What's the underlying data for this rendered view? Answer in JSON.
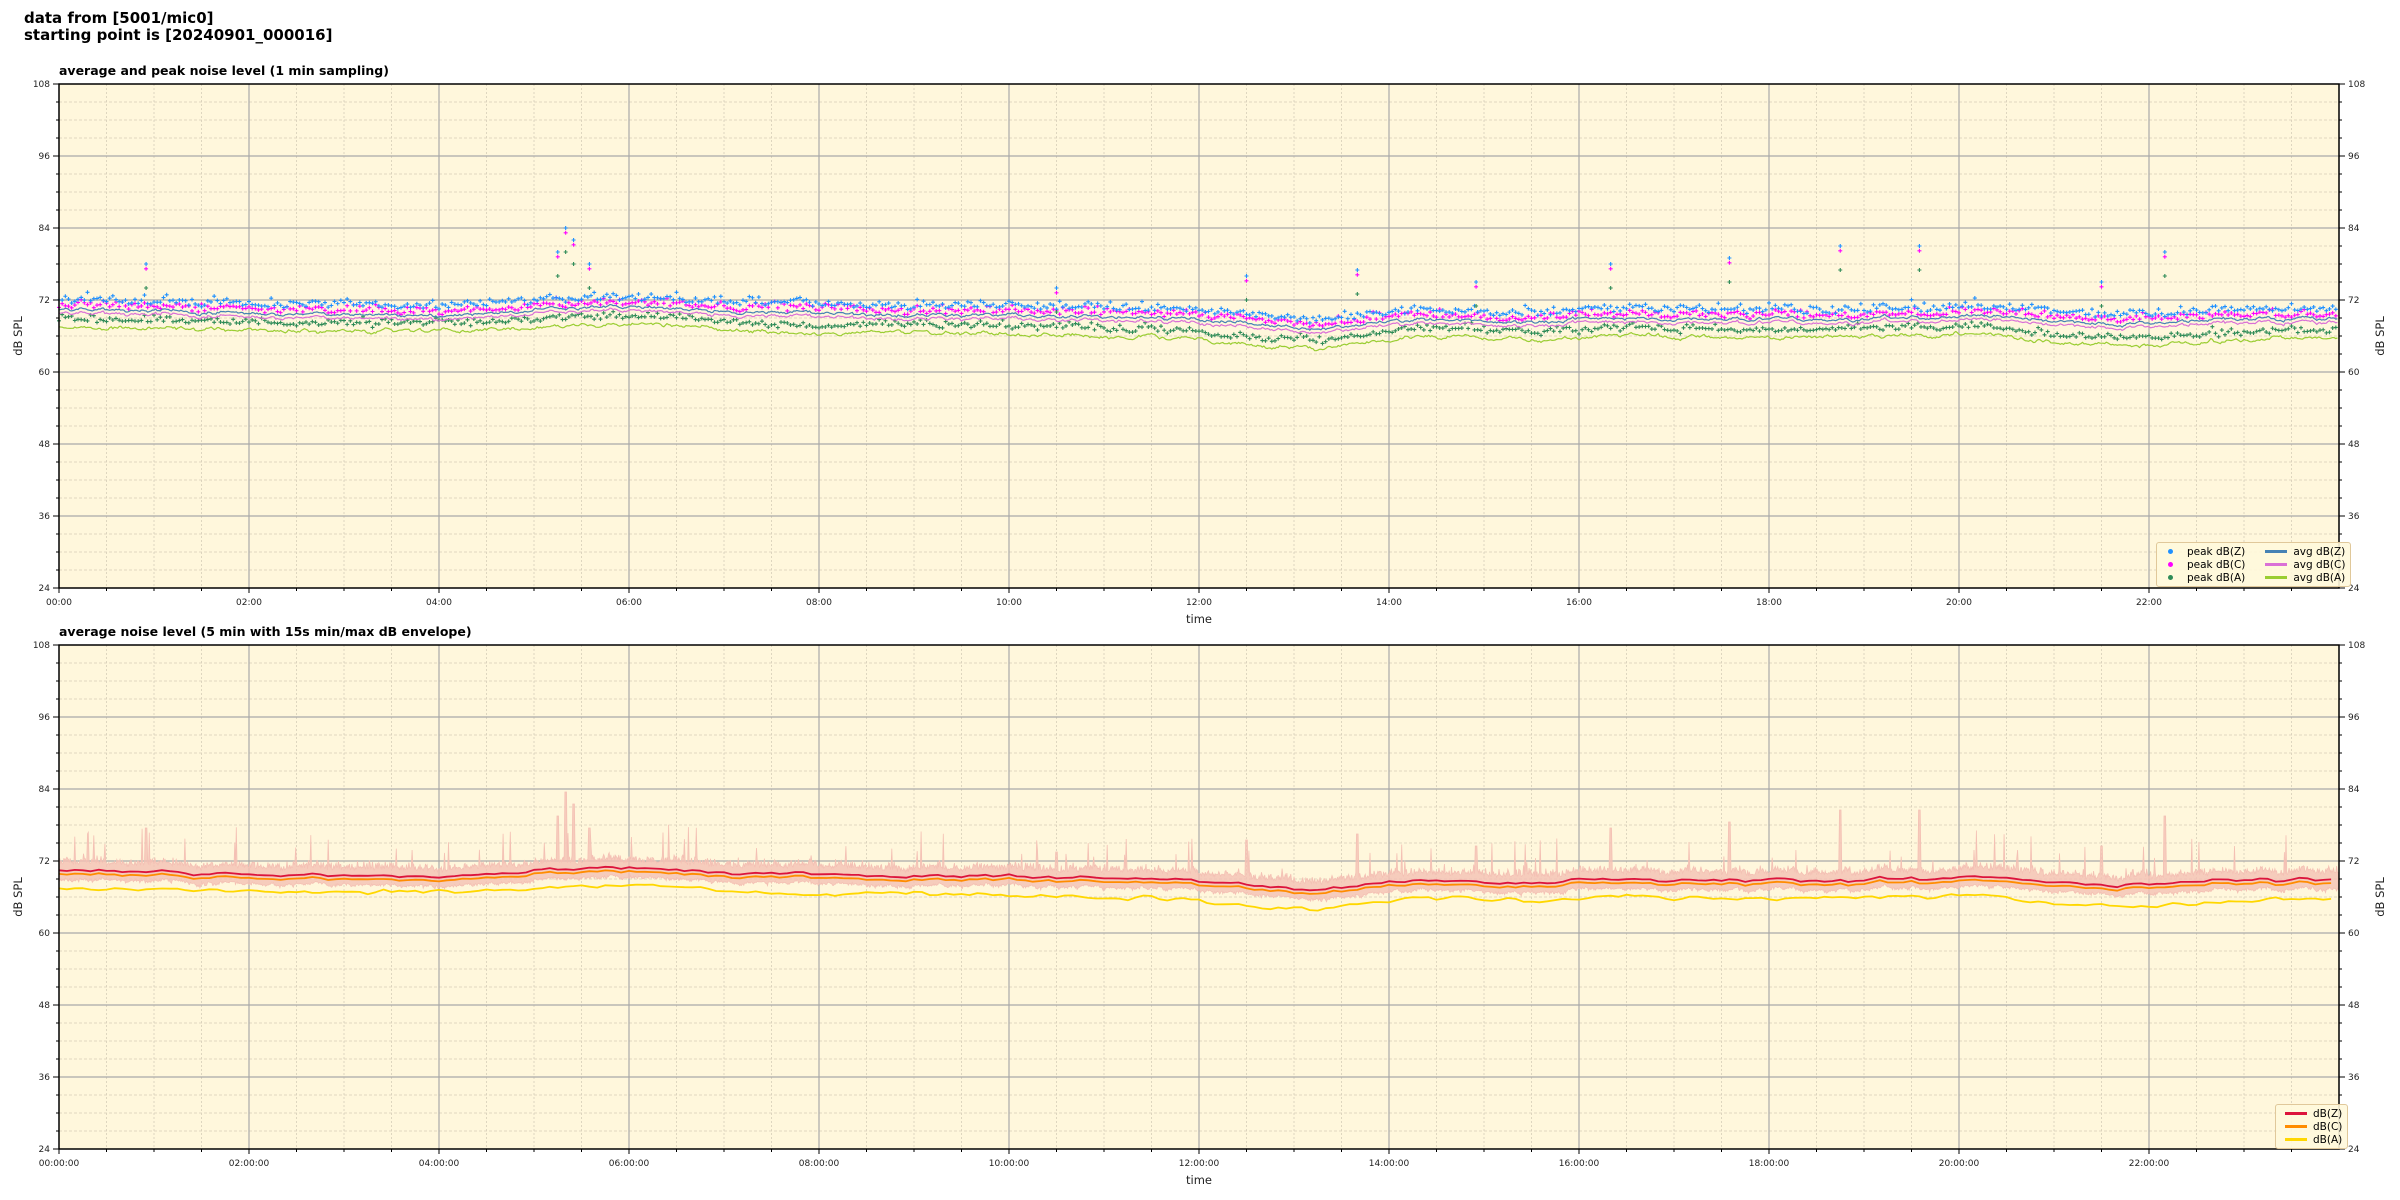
{
  "figure": {
    "title_line1": "data from [5001/mic0]",
    "title_line2": "starting point is [20240901_000016]"
  },
  "colors": {
    "plot_background": "#fff7dc",
    "grid_major": "#a9a9a9",
    "grid_minor": "#d6cdb8",
    "peak_z": "#1e90ff",
    "peak_c": "#ff00ff",
    "peak_a": "#2e8b57",
    "avg_z": "#4682b4",
    "avg_c": "#da70d6",
    "avg_a": "#9acd32",
    "z": "#dc143c",
    "c": "#ff8c00",
    "a": "#ffd700",
    "envelope": "#f4c0b4"
  },
  "chart_data": [
    {
      "type": "scatter+line",
      "title": "average and peak noise level (1 min sampling)",
      "xlabel": "time",
      "ylabel": "dB SPL",
      "ylim": [
        24,
        108
      ],
      "xlim": [
        "00:00",
        "24:00"
      ],
      "yticks": [
        "24",
        "36",
        "48",
        "60",
        "72",
        "84",
        "96",
        "108"
      ],
      "xticks": [
        "00:00",
        "02:00",
        "04:00",
        "06:00",
        "08:00",
        "10:00",
        "12:00",
        "14:00",
        "16:00",
        "18:00",
        "20:00",
        "22:00"
      ],
      "grid": true,
      "legend_position": "lower-right",
      "legend": [
        "peak dB(Z)",
        "peak dB(C)",
        "peak dB(A)",
        "avg dB(Z)",
        "avg dB(C)",
        "avg dB(A)"
      ],
      "sampling_minutes": 1,
      "half_hour_levels": {
        "avg_z": [
          70.3,
          70.3,
          70.2,
          70,
          69.8,
          69.8,
          69.8,
          69.7,
          69.5,
          69.8,
          70.5,
          71,
          70.8,
          70.3,
          70,
          69.8,
          69.6,
          69.5,
          69.5,
          69.5,
          69.4,
          69.3,
          69,
          69,
          68.6,
          67.8,
          67.2,
          68,
          68.6,
          68.8,
          68.3,
          68.6,
          69,
          69,
          68.8,
          68.7,
          68.8,
          69,
          69,
          69,
          69.5,
          68.8,
          68.2,
          68,
          68.3,
          68.6,
          68.8,
          68.8
        ],
        "avg_c_offset_from_z": -0.6,
        "avg_a": [
          67.3,
          67.3,
          67.2,
          67,
          66.8,
          66.8,
          66.8,
          66.7,
          66.6,
          67,
          67.6,
          68,
          67.8,
          67.4,
          67,
          66.8,
          66.6,
          66.5,
          66.5,
          66.5,
          66.3,
          66,
          65.8,
          65.8,
          65.2,
          64.2,
          63.8,
          64.8,
          65.5,
          65.8,
          65,
          65.6,
          66,
          66,
          65.8,
          65.7,
          65.8,
          66,
          66,
          66,
          66.5,
          65.5,
          64.8,
          64.5,
          64.8,
          65.3,
          65.5,
          65.5
        ]
      },
      "peak_events": [
        {
          "time": "00:55",
          "db": 78
        },
        {
          "time": "05:15",
          "db": 80
        },
        {
          "time": "05:20",
          "db": 84
        },
        {
          "time": "05:25",
          "db": 82
        },
        {
          "time": "05:35",
          "db": 78
        },
        {
          "time": "10:30",
          "db": 74
        },
        {
          "time": "12:30",
          "db": 76
        },
        {
          "time": "13:40",
          "db": 77
        },
        {
          "time": "14:55",
          "db": 75
        },
        {
          "time": "16:20",
          "db": 78
        },
        {
          "time": "17:35",
          "db": 79
        },
        {
          "time": "18:45",
          "db": 81
        },
        {
          "time": "19:35",
          "db": 81
        },
        {
          "time": "21:30",
          "db": 75
        },
        {
          "time": "22:10",
          "db": 80
        }
      ]
    },
    {
      "type": "line",
      "title": "average noise level (5 min with 15s min/max dB envelope)",
      "xlabel": "time",
      "ylabel": "dB SPL",
      "ylim": [
        24,
        108
      ],
      "xlim": [
        "00:00:00",
        "24:00:00"
      ],
      "yticks": [
        "24",
        "36",
        "48",
        "60",
        "72",
        "84",
        "96",
        "108"
      ],
      "xticks": [
        "00:00:00",
        "02:00:00",
        "04:00:00",
        "06:00:00",
        "08:00:00",
        "10:00:00",
        "12:00:00",
        "14:00:00",
        "16:00:00",
        "18:00:00",
        "20:00:00",
        "22:00:00"
      ],
      "grid": true,
      "legend_position": "lower-right",
      "legend": [
        "dB(Z)",
        "dB(C)",
        "dB(A)"
      ],
      "sampling_minutes": 5
    }
  ]
}
